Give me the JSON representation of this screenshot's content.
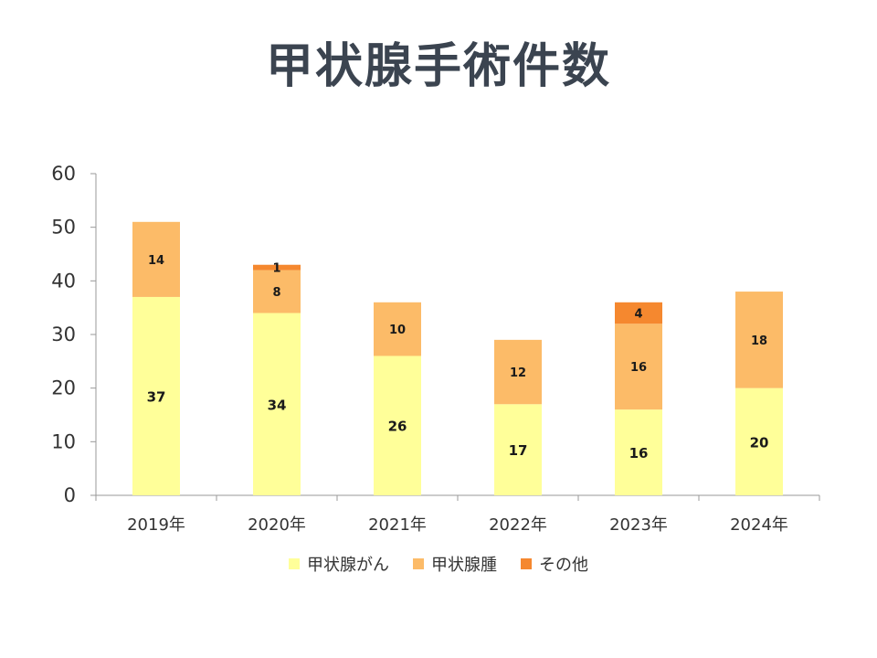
{
  "title": "甲状腺手術件数",
  "chart_data": {
    "type": "bar",
    "stacked": true,
    "categories": [
      "2019年",
      "2020年",
      "2021年",
      "2022年",
      "2023年",
      "2024年"
    ],
    "series": [
      {
        "name": "甲状腺がん",
        "values": [
          37,
          34,
          26,
          17,
          16,
          20
        ],
        "color": "#FFFF99"
      },
      {
        "name": "甲状腺腫",
        "values": [
          14,
          8,
          10,
          12,
          16,
          18
        ],
        "color": "#FCBB68"
      },
      {
        "name": "その他",
        "values": [
          0,
          1,
          0,
          0,
          4,
          0
        ],
        "color": "#F5882F"
      }
    ],
    "ylim": [
      0,
      60
    ],
    "yticks": [
      0,
      10,
      20,
      30,
      40,
      50,
      60
    ],
    "grid": false,
    "legend_position": "bottom"
  }
}
